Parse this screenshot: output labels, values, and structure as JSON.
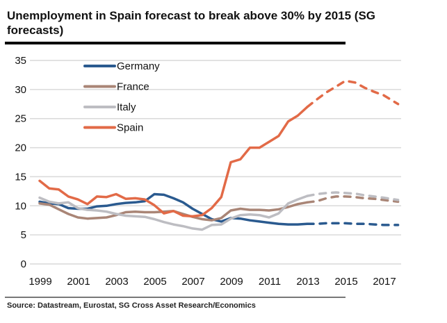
{
  "chart_data": {
    "type": "line",
    "title": "Unemployment in Spain forecast to break above 30% by 2015 (SG forecasts)",
    "source": "Source: Datastream, Eurostat, SG Cross Asset Research/Economics",
    "xlabel": "",
    "ylabel": "",
    "ylim": [
      0,
      35
    ],
    "xlim": [
      1999,
      2017.75
    ],
    "yticks": [
      "0",
      "5",
      "10",
      "15",
      "20",
      "25",
      "30",
      "35"
    ],
    "xticks": [
      "1999",
      "2001",
      "2003",
      "2005",
      "2007",
      "2009",
      "2011",
      "2013",
      "2015",
      "2017"
    ],
    "grid": true,
    "legend_position": "top-left",
    "forecast_start": 2013.5,
    "series": [
      {
        "name": "Germany",
        "color": "#2a5a8f",
        "x": [
          1999,
          1999.5,
          2000,
          2000.5,
          2001,
          2001.5,
          2002,
          2002.5,
          2003,
          2003.5,
          2004,
          2004.5,
          2005,
          2005.5,
          2006,
          2006.5,
          2007,
          2007.5,
          2008,
          2008.5,
          2009,
          2009.5,
          2010,
          2010.5,
          2011,
          2011.5,
          2012,
          2012.5,
          2013,
          2013.5,
          2014,
          2014.5,
          2015,
          2015.5,
          2016,
          2016.5,
          2017,
          2017.75
        ],
        "y": [
          10.7,
          10.4,
          10.3,
          9.6,
          9.5,
          9.5,
          9.9,
          10.0,
          10.3,
          10.5,
          10.6,
          10.8,
          12.0,
          11.9,
          11.3,
          10.6,
          9.5,
          8.6,
          7.7,
          7.3,
          7.9,
          7.8,
          7.5,
          7.3,
          7.1,
          6.9,
          6.8,
          6.8,
          6.9,
          6.9,
          7.0,
          7.0,
          7.0,
          6.9,
          6.9,
          6.8,
          6.7,
          6.7
        ]
      },
      {
        "name": "France",
        "color": "#a98576",
        "x": [
          1999,
          1999.5,
          2000,
          2000.5,
          2001,
          2001.5,
          2002,
          2002.5,
          2003,
          2003.5,
          2004,
          2004.5,
          2005,
          2005.5,
          2006,
          2006.5,
          2007,
          2007.5,
          2008,
          2008.5,
          2009,
          2009.5,
          2010,
          2010.5,
          2011,
          2011.5,
          2012,
          2012.5,
          2013,
          2013.5,
          2014,
          2014.5,
          2015,
          2015.5,
          2016,
          2016.5,
          2017,
          2017.75
        ],
        "y": [
          10.4,
          10.2,
          9.4,
          8.6,
          8.0,
          7.8,
          7.9,
          8.0,
          8.4,
          8.9,
          9.0,
          8.9,
          8.9,
          9.0,
          9.1,
          8.6,
          8.1,
          7.7,
          7.5,
          7.9,
          9.2,
          9.5,
          9.3,
          9.3,
          9.2,
          9.4,
          9.8,
          10.3,
          10.6,
          10.8,
          11.3,
          11.6,
          11.6,
          11.5,
          11.3,
          11.2,
          11.0,
          10.7
        ]
      },
      {
        "name": "Italy",
        "color": "#bdbdc2",
        "x": [
          1999,
          1999.5,
          2000,
          2000.5,
          2001,
          2001.5,
          2002,
          2002.5,
          2003,
          2003.5,
          2004,
          2004.5,
          2005,
          2005.5,
          2006,
          2006.5,
          2007,
          2007.5,
          2008,
          2008.5,
          2009,
          2009.5,
          2010,
          2010.5,
          2011,
          2011.5,
          2012,
          2012.5,
          2013,
          2013.5,
          2014,
          2014.5,
          2015,
          2015.5,
          2016,
          2016.5,
          2017,
          2017.75
        ],
        "y": [
          11.4,
          10.7,
          10.4,
          10.6,
          9.6,
          9.3,
          9.2,
          9.0,
          8.6,
          8.3,
          8.2,
          8.1,
          7.7,
          7.2,
          6.8,
          6.5,
          6.1,
          5.9,
          6.7,
          6.8,
          7.8,
          8.4,
          8.5,
          8.4,
          8.0,
          8.7,
          10.4,
          11.1,
          11.7,
          12.0,
          12.2,
          12.3,
          12.2,
          12.1,
          11.8,
          11.6,
          11.4,
          11.0
        ]
      },
      {
        "name": "Spain",
        "color": "#e26a47",
        "x": [
          1999,
          1999.5,
          2000,
          2000.5,
          2001,
          2001.5,
          2002,
          2002.5,
          2003,
          2003.5,
          2004,
          2004.5,
          2005,
          2005.5,
          2006,
          2006.5,
          2007,
          2007.5,
          2008,
          2008.5,
          2009,
          2009.5,
          2010,
          2010.5,
          2011,
          2011.5,
          2012,
          2012.5,
          2013,
          2013.5,
          2014,
          2014.5,
          2015,
          2015.5,
          2016,
          2016.5,
          2017,
          2017.75
        ],
        "y": [
          14.3,
          13.0,
          12.8,
          11.6,
          11.1,
          10.3,
          11.6,
          11.5,
          12.0,
          11.2,
          11.3,
          11.1,
          10.1,
          8.7,
          9.1,
          8.3,
          8.2,
          8.4,
          9.6,
          11.5,
          17.5,
          18.0,
          20.0,
          20.0,
          21.0,
          22.0,
          24.5,
          25.5,
          27.0,
          28.3,
          29.5,
          30.5,
          31.5,
          31.2,
          30.3,
          29.6,
          29.0,
          27.5
        ]
      }
    ]
  }
}
